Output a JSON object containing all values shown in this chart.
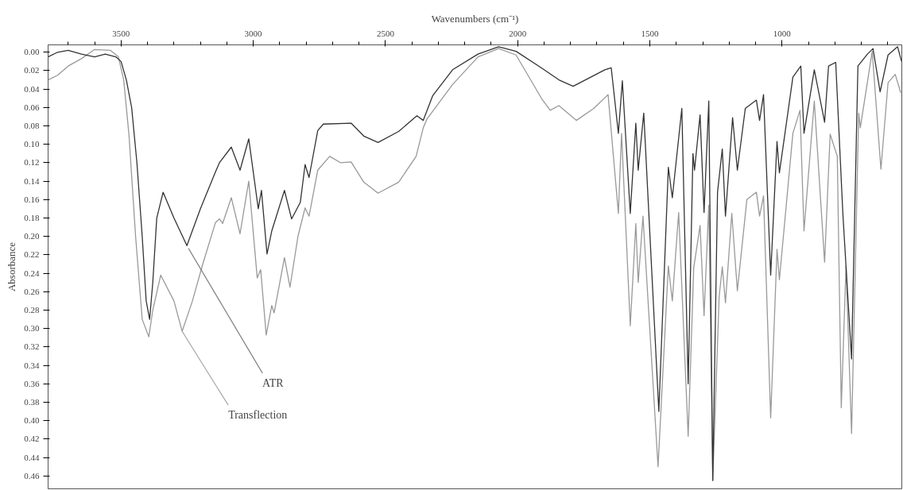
{
  "chart_data": {
    "type": "line",
    "xlabel": "Wavenumbers (cm⁻¹)",
    "ylabel": "Absorbance",
    "xlim": [
      3776,
      547
    ],
    "ylim": [
      0.474,
      -0.008
    ],
    "xticks": [
      {
        "value": 3700,
        "label": null
      },
      {
        "value": 3600,
        "label": null
      },
      3500,
      {
        "value": 3400,
        "label": null
      },
      {
        "value": 3300,
        "label": null
      },
      {
        "value": 3200,
        "label": null
      },
      {
        "value": 3100,
        "label": null
      },
      3000,
      {
        "value": 2900,
        "label": null
      },
      {
        "value": 2800,
        "label": null
      },
      {
        "value": 2700,
        "label": null
      },
      {
        "value": 2600,
        "label": null
      },
      2500,
      {
        "value": 2400,
        "label": null
      },
      {
        "value": 2300,
        "label": null
      },
      {
        "value": 2200,
        "label": null
      },
      {
        "value": 2100,
        "label": null
      },
      2000,
      {
        "value": 1900,
        "label": null
      },
      {
        "value": 1800,
        "label": null
      },
      {
        "value": 1700,
        "label": null
      },
      {
        "value": 1600,
        "label": null
      },
      1500,
      {
        "value": 1400,
        "label": null
      },
      {
        "value": 1300,
        "label": null
      },
      {
        "value": 1200,
        "label": null
      },
      {
        "value": 1100,
        "label": null
      },
      1000,
      {
        "value": 900,
        "label": null
      },
      {
        "value": 800,
        "label": null
      },
      {
        "value": 700,
        "label": null
      },
      {
        "value": 600,
        "label": null
      }
    ],
    "yticks": [
      {
        "value": 0.0,
        "label": "0.00"
      },
      {
        "value": 0.02,
        "label": "0.02"
      },
      {
        "value": 0.04,
        "label": "0.04"
      },
      {
        "value": 0.06,
        "label": "0.06"
      },
      {
        "value": 0.08,
        "label": "0.08"
      },
      {
        "value": 0.1,
        "label": "0.10"
      },
      {
        "value": 0.12,
        "label": "0.12"
      },
      {
        "value": 0.14,
        "label": "0.14"
      },
      {
        "value": 0.16,
        "label": "0.16"
      },
      {
        "value": 0.18,
        "label": "0.18"
      },
      {
        "value": 0.2,
        "label": "0.20"
      },
      {
        "value": 0.22,
        "label": "0.22"
      },
      {
        "value": 0.24,
        "label": "0.24"
      },
      {
        "value": 0.26,
        "label": "0.26"
      },
      {
        "value": 0.28,
        "label": "0.28"
      },
      {
        "value": 0.3,
        "label": "0.30"
      },
      {
        "value": 0.32,
        "label": "0.32"
      },
      {
        "value": 0.34,
        "label": "0.34"
      },
      {
        "value": 0.36,
        "label": "0.36"
      },
      {
        "value": 0.38,
        "label": "0.38"
      },
      {
        "value": 0.4,
        "label": "0.40"
      },
      {
        "value": 0.42,
        "label": "0.42"
      },
      {
        "value": 0.44,
        "label": "0.44"
      },
      {
        "value": 0.46,
        "label": "0.46"
      }
    ],
    "grid": false,
    "marker": "none",
    "line_style": "solid",
    "series": [
      {
        "color": "#999999",
        "x": [
          3776,
          3740,
          3700,
          3650,
          3600,
          3540,
          3510,
          3490,
          3470,
          3445,
          3420,
          3395,
          3380,
          3350,
          3300,
          3269,
          3230,
          3191,
          3143,
          3128,
          3116,
          3083,
          3050,
          3017,
          2985,
          2972,
          2951,
          2930,
          2921,
          2882,
          2861,
          2831,
          2804,
          2789,
          2756,
          2711,
          2669,
          2630,
          2582,
          2528,
          2450,
          2384,
          2357,
          2342,
          2246,
          2150,
          2072,
          2006,
          1910,
          1877,
          1844,
          1778,
          1712,
          1658,
          1619,
          1607,
          1574,
          1553,
          1544,
          1526,
          1469,
          1430,
          1415,
          1391,
          1355,
          1334,
          1310,
          1295,
          1277,
          1262,
          1238,
          1226,
          1214,
          1190,
          1169,
          1133,
          1097,
          1085,
          1070,
          1043,
          1019,
          1010,
          959,
          932,
          917,
          878,
          839,
          818,
          791,
          776,
          758,
          737,
          710,
          704,
          659,
          626,
          599,
          572,
          551
        ],
        "values": [
          0.03,
          0.025,
          0.015,
          0.007,
          -0.003,
          -0.002,
          0.005,
          0.03,
          0.09,
          0.2,
          0.29,
          0.309,
          0.28,
          0.242,
          0.27,
          0.303,
          0.27,
          0.23,
          0.185,
          0.181,
          0.186,
          0.158,
          0.197,
          0.14,
          0.245,
          0.236,
          0.307,
          0.275,
          0.283,
          0.223,
          0.255,
          0.2,
          0.169,
          0.178,
          0.128,
          0.113,
          0.12,
          0.119,
          0.141,
          0.153,
          0.141,
          0.113,
          0.082,
          0.072,
          0.035,
          0.005,
          -0.004,
          0.003,
          0.05,
          0.063,
          0.058,
          0.074,
          0.061,
          0.046,
          0.175,
          0.088,
          0.297,
          0.186,
          0.25,
          0.178,
          0.45,
          0.232,
          0.27,
          0.174,
          0.417,
          0.234,
          0.188,
          0.286,
          0.166,
          0.465,
          0.266,
          0.233,
          0.272,
          0.175,
          0.259,
          0.16,
          0.152,
          0.178,
          0.156,
          0.397,
          0.214,
          0.247,
          0.088,
          0.063,
          0.194,
          0.053,
          0.228,
          0.089,
          0.113,
          0.386,
          0.232,
          0.414,
          0.066,
          0.082,
          -0.001,
          0.127,
          0.033,
          0.024,
          0.044
        ]
      },
      {
        "color": "#333333",
        "x": [
          3776,
          3740,
          3700,
          3650,
          3600,
          3560,
          3520,
          3500,
          3480,
          3460,
          3440,
          3420,
          3405,
          3392,
          3380,
          3365,
          3341,
          3300,
          3251,
          3200,
          3143,
          3128,
          3083,
          3050,
          3017,
          2981,
          2969,
          2948,
          2930,
          2882,
          2855,
          2822,
          2804,
          2789,
          2756,
          2735,
          2630,
          2582,
          2528,
          2450,
          2381,
          2357,
          2321,
          2246,
          2150,
          2072,
          2006,
          1910,
          1844,
          1790,
          1670,
          1646,
          1619,
          1604,
          1574,
          1553,
          1544,
          1523,
          1466,
          1430,
          1415,
          1379,
          1355,
          1337,
          1331,
          1310,
          1295,
          1277,
          1262,
          1244,
          1226,
          1214,
          1187,
          1169,
          1139,
          1097,
          1085,
          1070,
          1043,
          1019,
          1010,
          959,
          929,
          917,
          878,
          839,
          824,
          797,
          770,
          737,
          713,
          677,
          656,
          629,
          599,
          563,
          548
        ],
        "values": [
          0.005,
          0.0,
          -0.002,
          0.002,
          0.005,
          0.002,
          0.005,
          0.01,
          0.03,
          0.06,
          0.12,
          0.2,
          0.27,
          0.29,
          0.25,
          0.18,
          0.152,
          0.18,
          0.21,
          0.17,
          0.13,
          0.12,
          0.103,
          0.128,
          0.094,
          0.17,
          0.15,
          0.219,
          0.194,
          0.15,
          0.181,
          0.163,
          0.122,
          0.136,
          0.085,
          0.078,
          0.077,
          0.091,
          0.098,
          0.086,
          0.069,
          0.074,
          0.047,
          0.019,
          0.002,
          -0.006,
          -0.001,
          0.017,
          0.03,
          0.037,
          0.019,
          0.017,
          0.088,
          0.031,
          0.175,
          0.077,
          0.128,
          0.066,
          0.39,
          0.125,
          0.158,
          0.061,
          0.36,
          0.11,
          0.128,
          0.068,
          0.174,
          0.053,
          0.465,
          0.152,
          0.105,
          0.178,
          0.071,
          0.128,
          0.061,
          0.052,
          0.074,
          0.046,
          0.242,
          0.097,
          0.131,
          0.027,
          0.015,
          0.088,
          0.019,
          0.076,
          0.015,
          0.011,
          0.175,
          0.333,
          0.015,
          0.002,
          -0.004,
          0.043,
          0.003,
          -0.006,
          0.01
        ]
      }
    ],
    "annotations": [
      {
        "text": "ATR",
        "x": 3245,
        "y": 0.213
      },
      {
        "text": "Transflection",
        "x": 3269,
        "y": 0.303
      }
    ]
  }
}
